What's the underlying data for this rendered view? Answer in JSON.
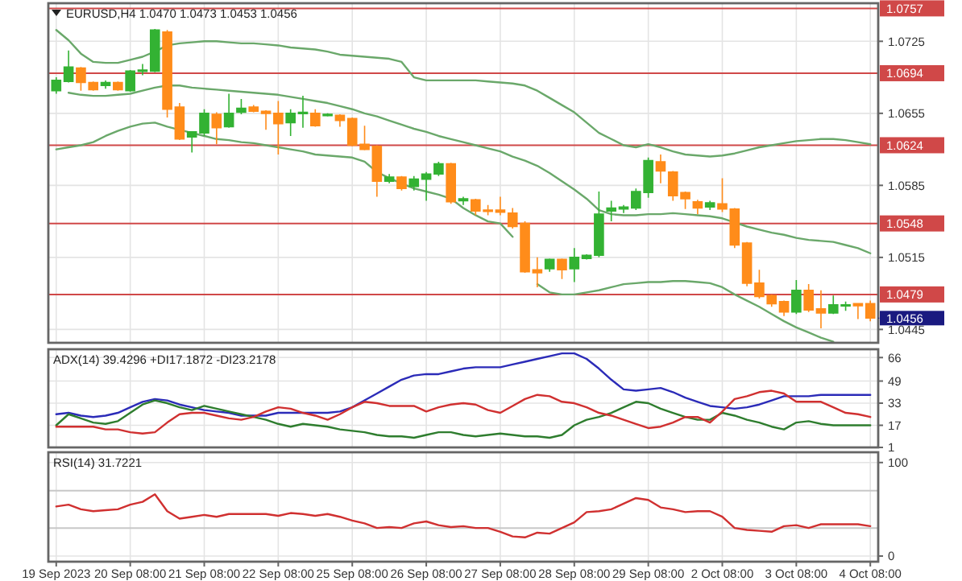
{
  "chart_data": [
    {
      "type": "candlestick",
      "title": "EURUSD,H4  1.0470 1.0473 1.0453 1.0456",
      "categories": [
        "19 Sep 2023",
        null,
        null,
        null,
        null,
        null,
        "20 Sep 08:00",
        null,
        null,
        null,
        null,
        null,
        "21 Sep 08:00",
        null,
        null,
        null,
        null,
        null,
        "22 Sep 08:00",
        null,
        null,
        null,
        null,
        null,
        "25 Sep 08:00",
        null,
        null,
        null,
        null,
        null,
        "26 Sep 08:00",
        null,
        null,
        null,
        null,
        null,
        "27 Sep 08:00",
        null,
        null,
        null,
        null,
        null,
        "28 Sep 08:00",
        null,
        null,
        null,
        null,
        null,
        "29 Sep 08:00",
        null,
        null,
        null,
        null,
        null,
        "2 Oct 08:00",
        null,
        null,
        null,
        null,
        null,
        "3 Oct 08:00",
        null,
        null,
        null,
        null,
        null,
        "4 Oct 08:00"
      ],
      "ohlc": [
        [
          1.0677,
          1.069,
          1.0674,
          1.0687
        ],
        [
          1.0686,
          1.0716,
          1.0685,
          1.07
        ],
        [
          1.0699,
          1.07,
          1.0677,
          1.0685
        ],
        [
          1.0685,
          1.0686,
          1.0677,
          1.0678
        ],
        [
          1.0682,
          1.0687,
          1.0679,
          1.0685
        ],
        [
          1.0685,
          1.0686,
          1.0677,
          1.0678
        ],
        [
          1.0677,
          1.0697,
          1.0676,
          1.0696
        ],
        [
          1.0696,
          1.0703,
          1.0692,
          1.0697
        ],
        [
          1.0696,
          1.0737,
          1.0695,
          1.0736
        ],
        [
          1.0734,
          1.0736,
          1.0651,
          1.0659
        ],
        [
          1.0661,
          1.0665,
          1.0629,
          1.063
        ],
        [
          1.0632,
          1.0637,
          1.0617,
          1.0637
        ],
        [
          1.0636,
          1.0659,
          1.0633,
          1.0655
        ],
        [
          1.0654,
          1.0656,
          1.0625,
          1.0641
        ],
        [
          1.0642,
          1.0674,
          1.0641,
          1.0655
        ],
        [
          1.0656,
          1.0669,
          1.0654,
          1.066
        ],
        [
          1.0661,
          1.0663,
          1.0656,
          1.0657
        ],
        [
          1.0657,
          1.0658,
          1.0639,
          1.0655
        ],
        [
          1.0655,
          1.0667,
          1.0615,
          1.0645
        ],
        [
          1.0646,
          1.0659,
          1.0633,
          1.0655
        ],
        [
          1.0655,
          1.0672,
          1.0641,
          1.0656
        ],
        [
          1.0655,
          1.0659,
          1.0642,
          1.0643
        ],
        [
          1.0653,
          1.0655,
          1.0652,
          1.0654
        ],
        [
          1.0653,
          1.0654,
          1.0642,
          1.0648
        ],
        [
          1.065,
          1.0651,
          1.0623,
          1.0624
        ],
        [
          1.0625,
          1.0643,
          1.0619,
          1.062
        ],
        [
          1.0623,
          1.0624,
          1.0574,
          1.0589
        ],
        [
          1.0589,
          1.0596,
          1.0587,
          1.0593
        ],
        [
          1.0593,
          1.0594,
          1.058,
          1.0582
        ],
        [
          1.0584,
          1.0594,
          1.058,
          1.0591
        ],
        [
          1.0591,
          1.0598,
          1.057,
          1.0596
        ],
        [
          1.0596,
          1.0608,
          1.0594,
          1.0606
        ],
        [
          1.0606,
          1.0607,
          1.0567,
          1.0569
        ],
        [
          1.057,
          1.0574,
          1.0566,
          1.0572
        ],
        [
          1.0571,
          1.0572,
          1.0556,
          1.056
        ],
        [
          1.0561,
          1.0566,
          1.0556,
          1.056
        ],
        [
          1.0561,
          1.0574,
          1.0556,
          1.0559
        ],
        [
          1.0558,
          1.0563,
          1.0543,
          1.0545
        ],
        [
          1.0548,
          1.055,
          1.05,
          1.0501
        ],
        [
          1.0503,
          1.0515,
          1.0486,
          1.05
        ],
        [
          1.0504,
          1.0514,
          1.0501,
          1.0513
        ],
        [
          1.0513,
          1.0514,
          1.0494,
          1.0503
        ],
        [
          1.0504,
          1.0524,
          1.0491,
          1.0515
        ],
        [
          1.0514,
          1.0518,
          1.0513,
          1.0517
        ],
        [
          1.0517,
          1.0579,
          1.0515,
          1.0557
        ],
        [
          1.056,
          1.057,
          1.055,
          1.0563
        ],
        [
          1.0562,
          1.0566,
          1.0558,
          1.0564
        ],
        [
          1.0563,
          1.0582,
          1.0561,
          1.0579
        ],
        [
          1.0578,
          1.0612,
          1.0573,
          1.0609
        ],
        [
          1.0608,
          1.0615,
          1.0587,
          1.0599
        ],
        [
          1.0598,
          1.0599,
          1.057,
          1.0575
        ],
        [
          1.0578,
          1.0579,
          1.0562,
          1.0572
        ],
        [
          1.0569,
          1.0571,
          1.0557,
          1.0563
        ],
        [
          1.0564,
          1.057,
          1.0561,
          1.0568
        ],
        [
          1.0567,
          1.0592,
          1.0559,
          1.0562
        ],
        [
          1.0562,
          1.0563,
          1.0524,
          1.0527
        ],
        [
          1.0529,
          1.053,
          1.0487,
          1.049
        ],
        [
          1.049,
          1.0503,
          1.0475,
          1.0477
        ],
        [
          1.0478,
          1.0479,
          1.0467,
          1.047
        ],
        [
          1.0472,
          1.0473,
          1.0458,
          1.0462
        ],
        [
          1.0462,
          1.0493,
          1.046,
          1.0483
        ],
        [
          1.0483,
          1.0489,
          1.0462,
          1.0464
        ],
        [
          1.0465,
          1.0483,
          1.0446,
          1.0461
        ],
        [
          1.0461,
          1.0478,
          1.046,
          1.0469
        ],
        [
          1.0468,
          1.0472,
          1.0463,
          1.0469
        ],
        [
          1.047,
          1.047,
          1.0455,
          1.0468
        ],
        [
          1.047,
          1.0473,
          1.0453,
          1.0456
        ]
      ],
      "colors": [
        "#33b233",
        "#33b233",
        "#ff8c1a",
        "#ff8c1a",
        "#33b233",
        "#ff8c1a",
        "#33b233",
        "#33b233",
        "#33b233",
        "#ff8c1a",
        "#ff8c1a",
        "#33b233",
        "#33b233",
        "#ff8c1a",
        "#33b233",
        "#33b233",
        "#ff8c1a",
        "#ff8c1a",
        "#ff8c1a",
        "#33b233",
        "#33b233",
        "#ff8c1a",
        "#33b233",
        "#ff8c1a",
        "#ff8c1a",
        "#ff8c1a",
        "#ff8c1a",
        "#33b233",
        "#ff8c1a",
        "#33b233",
        "#33b233",
        "#33b233",
        "#ff8c1a",
        "#33b233",
        "#ff8c1a",
        "#ff8c1a",
        "#ff8c1a",
        "#ff8c1a",
        "#ff8c1a",
        "#ff8c1a",
        "#33b233",
        "#ff8c1a",
        "#33b233",
        "#33b233",
        "#33b233",
        "#33b233",
        "#33b233",
        "#33b233",
        "#33b233",
        "#ff8c1a",
        "#ff8c1a",
        "#ff8c1a",
        "#ff8c1a",
        "#33b233",
        "#ff8c1a",
        "#ff8c1a",
        "#ff8c1a",
        "#ff8c1a",
        "#ff8c1a",
        "#ff8c1a",
        "#33b233",
        "#ff8c1a",
        "#ff8c1a",
        "#33b233",
        "#33b233",
        "#ff8c1a",
        "#ff8c1a"
      ],
      "series": [
        {
          "type": "line",
          "color": "#6aa86a",
          "values": [
            1.0736,
            1.0726,
            1.0713,
            1.0705,
            1.0704,
            1.0704,
            1.0707,
            1.071,
            1.0715,
            1.0721,
            1.0723,
            1.0724,
            1.0725,
            1.0725,
            1.0724,
            1.0723,
            1.0723,
            1.0722,
            1.0721,
            1.0719,
            1.0718,
            1.0717,
            1.0715,
            1.0712,
            1.0711,
            1.071,
            1.0709,
            1.0708,
            1.0705,
            1.069,
            1.0687,
            1.0687,
            1.0687,
            1.0687,
            1.0687,
            1.0686,
            1.0685,
            1.0684,
            1.0682,
            1.0677,
            1.067,
            1.0663,
            1.0656,
            1.0646,
            1.0636,
            1.063,
            1.0624,
            1.0622,
            1.0625,
            1.0622,
            1.0618,
            1.0615,
            1.0614,
            1.0613,
            1.0614,
            1.0616,
            1.0619,
            1.0622,
            1.0624,
            1.0626,
            1.0628,
            1.0629,
            1.063,
            1.063,
            1.0629,
            1.0627,
            1.0625
          ]
        },
        {
          "type": "line",
          "color": "#6aa86a",
          "values": [
            null,
            1.0675,
            1.0673,
            1.0672,
            1.0672,
            1.0673,
            1.0674,
            1.0677,
            1.068,
            1.0682,
            1.0682,
            1.068,
            1.0679,
            1.0678,
            1.0677,
            1.0676,
            1.0675,
            1.0674,
            1.0673,
            1.0671,
            1.0669,
            1.0667,
            1.0665,
            1.0662,
            1.0659,
            1.0655,
            1.0652,
            1.0648,
            1.0644,
            1.064,
            1.0637,
            1.0633,
            1.063,
            1.0627,
            1.0624,
            1.0621,
            1.0618,
            1.0613,
            1.0609,
            1.0604,
            1.0597,
            1.0589,
            1.0581,
            1.0572,
            1.0561,
            1.0557,
            1.0556,
            1.0556,
            1.0557,
            1.0557,
            1.0558,
            1.0557,
            1.0556,
            1.0555,
            1.0553,
            1.0549,
            1.0545,
            1.0542,
            1.0539,
            1.0537,
            1.0534,
            1.0532,
            1.0531,
            1.053,
            1.0527,
            1.0524,
            1.0519
          ]
        },
        {
          "type": "line",
          "color": "#6aa86a",
          "values": [
            1.062,
            1.0622,
            1.0624,
            1.0627,
            1.0633,
            1.0638,
            1.0642,
            1.0645,
            1.0646,
            1.0642,
            1.0639,
            1.0636,
            1.0633,
            1.063,
            1.0629,
            1.0627,
            1.0626,
            1.0624,
            1.0622,
            1.062,
            1.0618,
            1.0615,
            1.0614,
            1.0613,
            1.0612,
            1.0608,
            1.0598,
            1.0592,
            1.0587,
            1.0582,
            1.0579,
            1.0576,
            1.0572,
            1.0563,
            1.0556,
            1.055,
            1.0548,
            1.0535,
            null,
            1.0489,
            1.0481,
            1.0479,
            1.0479,
            1.0481,
            1.0483,
            1.0486,
            1.0489,
            1.049,
            1.0491,
            1.0491,
            1.0492,
            1.0492,
            1.0491,
            1.049,
            1.0486,
            1.0479,
            1.0473,
            1.0467,
            1.046,
            1.0453,
            1.0447,
            1.0442,
            1.0437,
            1.0433,
            null,
            null,
            null
          ]
        }
      ],
      "ylim": [
        1.0432,
        1.0762
      ],
      "yticks": [
        1.0725,
        1.0655,
        1.0585,
        1.0515,
        1.0445
      ],
      "grid": true,
      "tick_labels": "y",
      "ref_lines": [
        {
          "axis": "y",
          "value": 1.0757,
          "label": "1.0757",
          "color": "#d04848"
        },
        {
          "axis": "y",
          "value": 1.0694,
          "label": "1.0694",
          "color": "#d04848"
        },
        {
          "axis": "y",
          "value": 1.0624,
          "label": "1.0624",
          "color": "#d04848"
        },
        {
          "axis": "y",
          "value": 1.0548,
          "label": "1.0548",
          "color": "#d04848"
        },
        {
          "axis": "y",
          "value": 1.0479,
          "label": "1.0479",
          "color": "#d04848"
        }
      ],
      "annotations": [
        {
          "text": "1.0456",
          "x": "4 Oct 08:00",
          "y": 1.0456
        }
      ]
    },
    {
      "type": "line",
      "title": "ADX(14) 39.4296 +DI17.1872 -DI23.2178",
      "categories": [
        "19 Sep 2023",
        null,
        null,
        null,
        null,
        null,
        "20 Sep 08:00",
        null,
        null,
        null,
        null,
        null,
        "21 Sep 08:00",
        null,
        null,
        null,
        null,
        null,
        "22 Sep 08:00",
        null,
        null,
        null,
        null,
        null,
        "25 Sep 08:00",
        null,
        null,
        null,
        null,
        null,
        "26 Sep 08:00",
        null,
        null,
        null,
        null,
        null,
        "27 Sep 08:00",
        null,
        null,
        null,
        null,
        null,
        "28 Sep 08:00",
        null,
        null,
        null,
        null,
        null,
        "29 Sep 08:00",
        null,
        null,
        null,
        null,
        null,
        "2 Oct 08:00",
        null,
        null,
        null,
        null,
        null,
        "3 Oct 08:00",
        null,
        null,
        null,
        null,
        null,
        "4 Oct 08:00"
      ],
      "series": [
        {
          "color": "#2b2bb8",
          "values": [
            25,
            26,
            24,
            23,
            24,
            26,
            30,
            34,
            36,
            35,
            32,
            30,
            28,
            27,
            26,
            24,
            24,
            24,
            26,
            26,
            26,
            26,
            26,
            27,
            30,
            35,
            40,
            45,
            50,
            53,
            54,
            54,
            56,
            58,
            59,
            59,
            59,
            61,
            63,
            65,
            67,
            69,
            69,
            65,
            58,
            50,
            43,
            42,
            43,
            44,
            41,
            37,
            34,
            31,
            30,
            29,
            30,
            32,
            35,
            38,
            38,
            38,
            39,
            39,
            39,
            39,
            39
          ]
        },
        {
          "color": "#2e7d2e",
          "values": [
            17,
            25,
            22,
            19,
            18,
            20,
            26,
            32,
            35,
            33,
            30,
            28,
            31,
            29,
            27,
            25,
            23,
            21,
            18,
            16,
            18,
            17,
            16,
            14,
            13,
            12,
            10,
            9,
            9,
            8,
            10,
            12,
            12,
            10,
            9,
            10,
            11,
            10,
            9,
            9,
            8,
            10,
            17,
            21,
            23,
            26,
            30,
            34,
            33,
            29,
            26,
            23,
            21,
            21,
            26,
            24,
            21,
            19,
            16,
            14,
            19,
            20,
            18,
            17,
            17,
            17,
            17
          ]
        },
        {
          "color": "#d03030",
          "values": [
            16,
            16,
            16,
            16,
            14,
            14,
            12,
            11,
            12,
            19,
            25,
            26,
            26,
            24,
            22,
            21,
            23,
            27,
            30,
            29,
            26,
            24,
            21,
            25,
            30,
            34,
            33,
            31,
            31,
            31,
            27,
            30,
            32,
            33,
            32,
            28,
            26,
            31,
            36,
            39,
            38,
            34,
            33,
            30,
            26,
            24,
            21,
            18,
            15,
            16,
            19,
            23,
            23,
            19,
            27,
            36,
            38,
            41,
            42,
            40,
            34,
            34,
            34,
            30,
            26,
            25,
            23
          ]
        }
      ],
      "ylim": [
        1,
        72
      ],
      "yticks": [
        66,
        49,
        33,
        17,
        1
      ],
      "grid": true,
      "tick_labels": "y"
    },
    {
      "type": "line",
      "title": "RSI(14) 31.7221",
      "categories": [
        "19 Sep 2023",
        null,
        null,
        null,
        null,
        null,
        "20 Sep 08:00",
        null,
        null,
        null,
        null,
        null,
        "21 Sep 08:00",
        null,
        null,
        null,
        null,
        null,
        "22 Sep 08:00",
        null,
        null,
        null,
        null,
        null,
        "25 Sep 08:00",
        null,
        null,
        null,
        null,
        null,
        "26 Sep 08:00",
        null,
        null,
        null,
        null,
        null,
        "27 Sep 08:00",
        null,
        null,
        null,
        null,
        null,
        "28 Sep 08:00",
        null,
        null,
        null,
        null,
        null,
        "29 Sep 08:00",
        null,
        null,
        null,
        null,
        null,
        "2 Oct 08:00",
        null,
        null,
        null,
        null,
        null,
        "3 Oct 08:00",
        null,
        null,
        null,
        null,
        null,
        "4 Oct 08:00"
      ],
      "series": [
        {
          "color": "#d03030",
          "values": [
            53,
            55,
            50,
            48,
            49,
            50,
            55,
            58,
            66,
            48,
            40,
            42,
            44,
            42,
            45,
            45,
            45,
            45,
            43,
            46,
            45,
            43,
            45,
            42,
            38,
            35,
            30,
            31,
            30,
            35,
            37,
            33,
            31,
            32,
            30,
            30,
            26,
            21,
            20,
            25,
            24,
            30,
            36,
            47,
            48,
            50,
            56,
            62,
            60,
            52,
            50,
            47,
            48,
            48,
            42,
            30,
            28,
            27,
            26,
            32,
            33,
            30,
            34,
            34,
            34,
            34,
            32
          ]
        }
      ],
      "ylim": [
        -6,
        111
      ],
      "yticks": [
        100,
        0
      ],
      "grid": true,
      "ref_lines": [
        {
          "axis": "y",
          "value": 70,
          "color": "#c8c8c8"
        },
        {
          "axis": "y",
          "value": 30,
          "color": "#c8c8c8"
        }
      ]
    }
  ]
}
